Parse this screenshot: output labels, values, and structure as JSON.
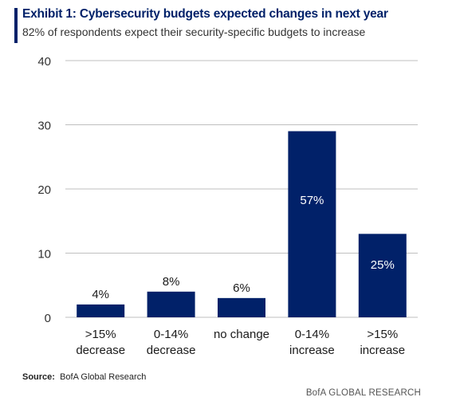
{
  "header": {
    "title": "Exhibit 1: Cybersecurity budgets expected changes in next year",
    "subtitle": "82% of respondents expect their security-specific budgets to increase"
  },
  "chart_data": {
    "type": "bar",
    "categories": [
      [
        ">15%",
        "decrease"
      ],
      [
        "0-14%",
        "decrease"
      ],
      [
        "no change"
      ],
      [
        "0-14%",
        "increase"
      ],
      [
        ">15%",
        "increase"
      ]
    ],
    "values": [
      2,
      4,
      3,
      29,
      13
    ],
    "data_labels": [
      "4%",
      "8%",
      "6%",
      "57%",
      "25%"
    ],
    "data_label_position": [
      "above",
      "above",
      "above",
      "inside",
      "inside"
    ],
    "yticks": [
      0,
      10,
      20,
      30,
      40
    ],
    "ylim": [
      0,
      40
    ],
    "grid": true,
    "bar_color": "#012169",
    "grid_color": "#bfbfbf",
    "label_inside_color": "#ffffff",
    "label_outside_color": "#1a1a1a"
  },
  "footer": {
    "source_label": "Source:",
    "source_text": "BofA Global Research",
    "watermark": "BofA GLOBAL RESEARCH"
  }
}
